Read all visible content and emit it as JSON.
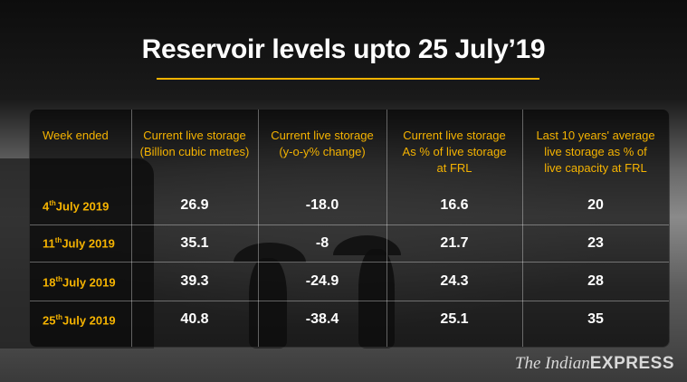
{
  "title": "Reservoir levels upto 25 July’19",
  "headers": [
    [
      "Week ended"
    ],
    [
      "Current live storage",
      "(Billion cubic metres)"
    ],
    [
      "Current live storage",
      "(y-o-y% change)"
    ],
    [
      "Current live storage",
      "As % of live storage",
      "at FRL"
    ],
    [
      "Last 10 years' average",
      "live storage as % of",
      "live capacity at FRL"
    ]
  ],
  "rows": [
    {
      "day": "4",
      "suffix": "th",
      "rest": "July 2019",
      "storage": "26.9",
      "yoy": "-18.0",
      "pct_frl": "16.6",
      "avg10": "20"
    },
    {
      "day": "11",
      "suffix": "th",
      "rest": "July 2019",
      "storage": "35.1",
      "yoy": "-8",
      "pct_frl": "21.7",
      "avg10": "23"
    },
    {
      "day": "18",
      "suffix": "th",
      "rest": "July 2019",
      "storage": "39.3",
      "yoy": "-24.9",
      "pct_frl": "24.3",
      "avg10": "28"
    },
    {
      "day": "25",
      "suffix": "th",
      "rest": "July 2019",
      "storage": "40.8",
      "yoy": "-38.4",
      "pct_frl": "25.1",
      "avg10": "35"
    }
  ],
  "brand": {
    "prefix": "The Indian",
    "name": "EXPRESS"
  },
  "colors": {
    "accent": "#f5b301",
    "text": "#ffffff"
  },
  "chart_data": {
    "type": "table",
    "title": "Reservoir levels upto 25 July’19",
    "columns": [
      "Week ended",
      "Current live storage (Billion cubic metres)",
      "Current live storage (y-o-y% change)",
      "Current live storage As % of live storage at FRL",
      "Last 10 years' average live storage as % of live capacity at FRL"
    ],
    "rows": [
      [
        "4th July 2019",
        26.9,
        -18.0,
        16.6,
        20
      ],
      [
        "11th July 2019",
        35.1,
        -8,
        21.7,
        23
      ],
      [
        "18th July 2019",
        39.3,
        -24.9,
        24.3,
        28
      ],
      [
        "25th July 2019",
        40.8,
        -38.4,
        25.1,
        35
      ]
    ]
  }
}
